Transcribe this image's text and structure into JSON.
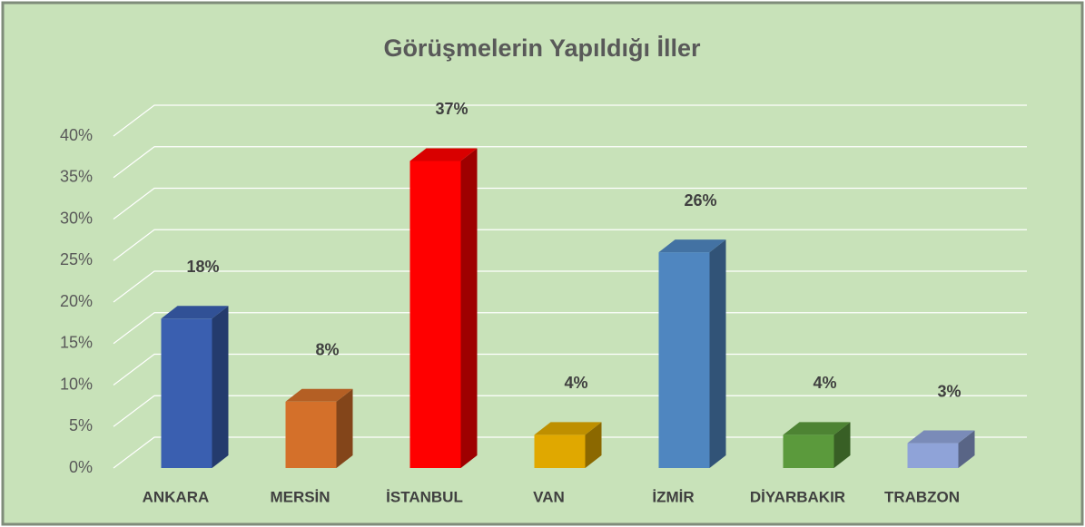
{
  "chart_data": {
    "type": "bar3d",
    "title": "Görüşmelerin Yapıldığı İller",
    "categories": [
      "ANKARA",
      "MERSİN",
      "İSTANBUL",
      "VAN",
      "İZMİR",
      "DİYARBAKIR",
      "TRABZON"
    ],
    "values": [
      18,
      8,
      37,
      4,
      26,
      4,
      3
    ],
    "value_labels": [
      "18%",
      "8%",
      "37%",
      "4%",
      "26%",
      "4%",
      "3%"
    ],
    "colors": [
      "#3a5fb0",
      "#d4702a",
      "#ff0000",
      "#e0a800",
      "#4f86c0",
      "#5b9a3c",
      "#8fa3d8"
    ],
    "ylim": [
      0,
      40
    ],
    "yticks": [
      {
        "value": 0,
        "label": "0%"
      },
      {
        "value": 5,
        "label": "5%"
      },
      {
        "value": 10,
        "label": "10%"
      },
      {
        "value": 15,
        "label": "15%"
      },
      {
        "value": 20,
        "label": "20%"
      },
      {
        "value": 25,
        "label": "25%"
      },
      {
        "value": 30,
        "label": "30%"
      },
      {
        "value": 35,
        "label": "35%"
      },
      {
        "value": 40,
        "label": "40%"
      }
    ],
    "grid": true
  }
}
